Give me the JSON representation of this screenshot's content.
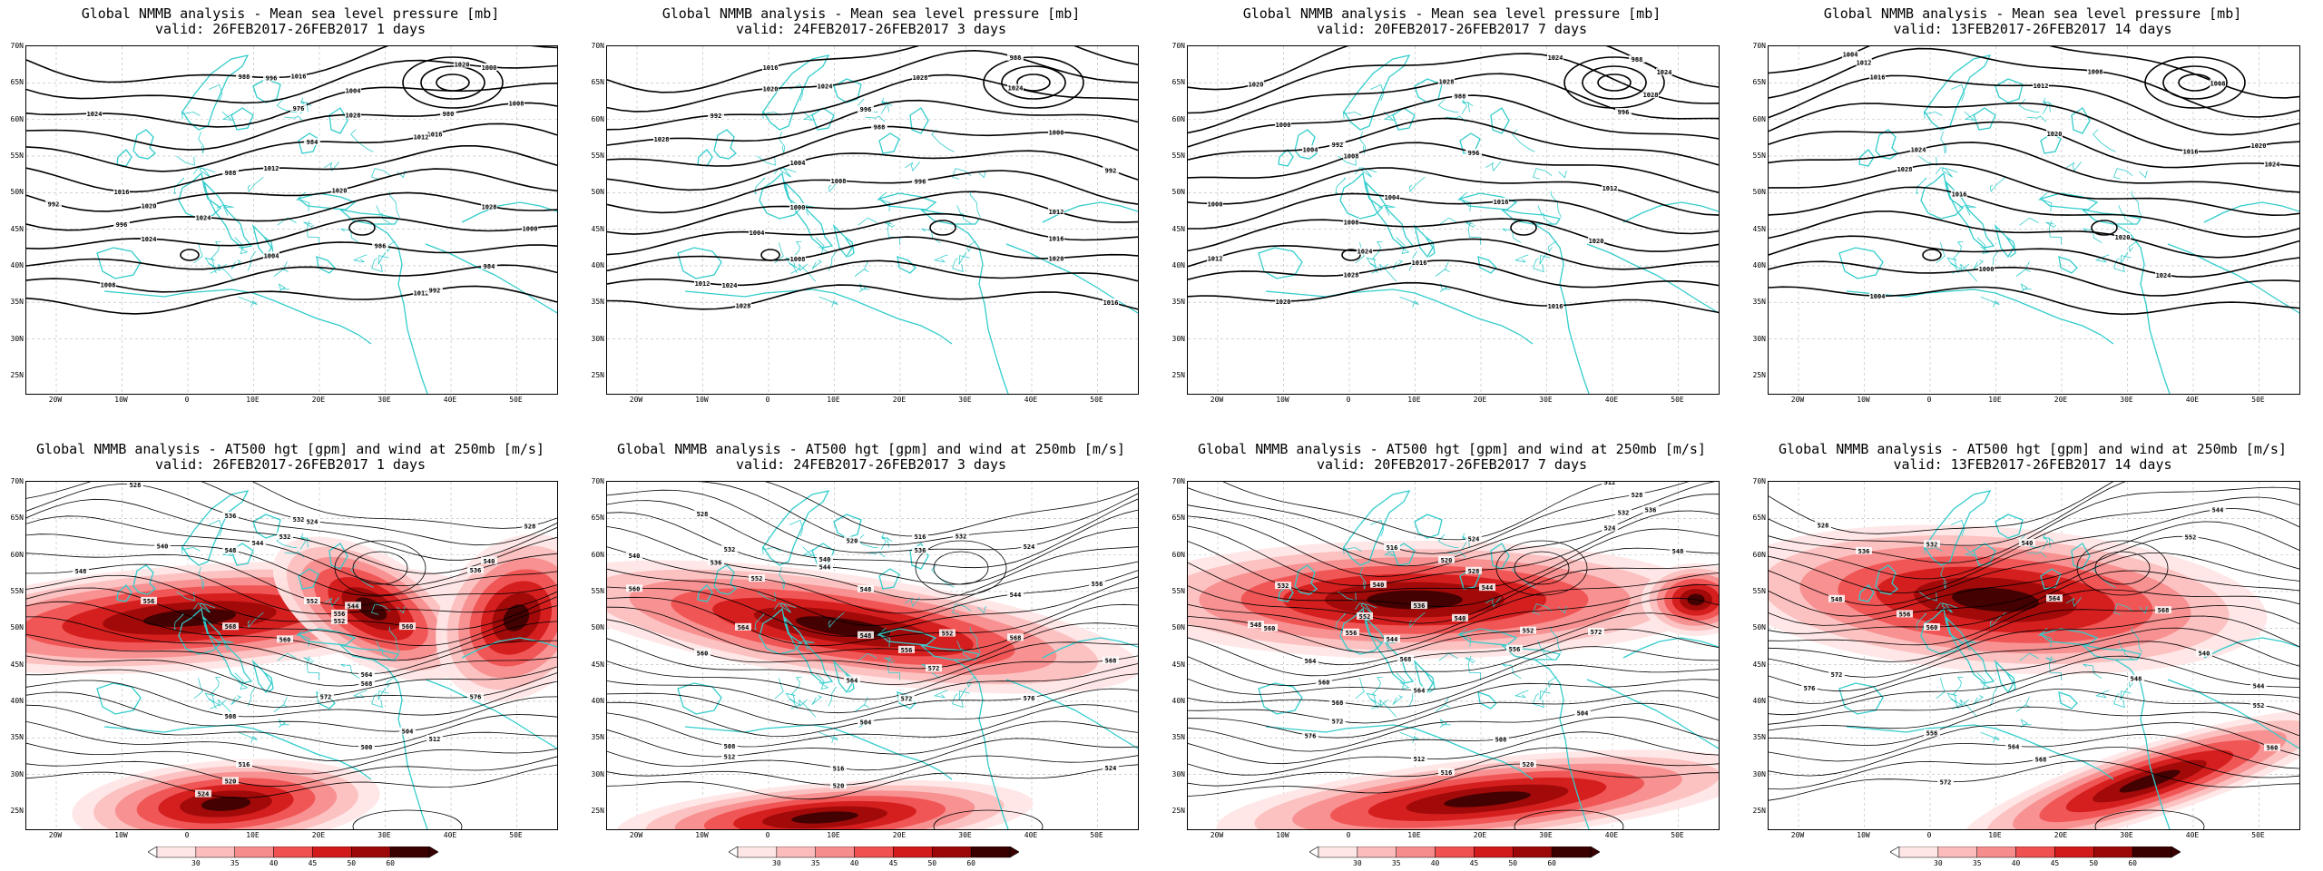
{
  "panels": [
    {
      "title_line1": "Global NMMB analysis - Mean sea level pressure [mb]",
      "title_line2": "valid: 26FEB2017-26FEB2017  1 days",
      "kind": "mslp",
      "contour_labels": [
        "988",
        "972",
        "976",
        "980",
        "984",
        "988",
        "992",
        "996",
        "1000",
        "1004",
        "1008",
        "1012",
        "1016",
        "1020",
        "1024",
        "1028",
        "1016",
        "1012",
        "1020",
        "1024",
        "1024",
        "986",
        "984",
        "992",
        "996",
        "1000",
        "1004",
        "1008",
        "1012",
        "1016",
        "1020",
        "1028"
      ]
    },
    {
      "title_line1": "Global NMMB analysis - Mean sea level pressure [mb]",
      "title_line2": "valid: 24FEB2017-26FEB2017  3 days",
      "kind": "mslp",
      "contour_labels": [
        "980",
        "988",
        "992",
        "996",
        "1000",
        "1004",
        "1008",
        "1012",
        "1016",
        "1020",
        "1024",
        "1028",
        "1016",
        "1020",
        "1024",
        "1028",
        "988",
        "992",
        "996",
        "1000",
        "1004",
        "1008",
        "1012",
        "1016",
        "1020",
        "1024",
        "1028"
      ]
    },
    {
      "title_line1": "Global NMMB analysis - Mean sea level pressure [mb]",
      "title_line2": "valid: 20FEB2017-26FEB2017  7 days",
      "kind": "mslp",
      "contour_labels": [
        "988",
        "992",
        "996",
        "1000",
        "1004",
        "1008",
        "1012",
        "1016",
        "1020",
        "1024",
        "1028",
        "1016",
        "1020",
        "1024",
        "1028",
        "988",
        "992",
        "996",
        "1000",
        "1004",
        "1008",
        "1012",
        "1016",
        "1020",
        "1024",
        "1028"
      ]
    },
    {
      "title_line1": "Global NMMB analysis - Mean sea level pressure [mb]",
      "title_line2": "valid: 13FEB2017-26FEB2017  14 days",
      "kind": "mslp",
      "contour_labels": [
        "1004",
        "1008",
        "1012",
        "1016",
        "1020",
        "1024",
        "1028",
        "1016",
        "1020",
        "1024",
        "1000",
        "1004",
        "1008",
        "1012",
        "1016",
        "1020",
        "1024"
      ]
    },
    {
      "title_line1": "Global NMMB analysis - AT500 hgt [gpm] and wind at 250mb [m/s]",
      "title_line2": "valid: 26FEB2017-26FEB2017  1 days",
      "kind": "z500",
      "contour_labels": [
        "520",
        "524",
        "528",
        "532",
        "536",
        "540",
        "544",
        "548",
        "552",
        "556",
        "560",
        "564",
        "568",
        "572",
        "576",
        "508",
        "504",
        "500",
        "512",
        "516",
        "520",
        "524",
        "528",
        "532",
        "536",
        "540",
        "544",
        "548",
        "552",
        "556",
        "560",
        "568"
      ]
    },
    {
      "title_line1": "Global NMMB analysis - AT500 hgt [gpm] and wind at 250mb [m/s]",
      "title_line2": "valid: 24FEB2017-26FEB2017  3 days",
      "kind": "z500",
      "contour_labels": [
        "516",
        "520",
        "524",
        "528",
        "532",
        "536",
        "540",
        "544",
        "548",
        "552",
        "556",
        "560",
        "564",
        "568",
        "572",
        "576",
        "504",
        "508",
        "512",
        "516",
        "520",
        "524",
        "528",
        "532",
        "536",
        "540",
        "544",
        "548",
        "552",
        "556",
        "560",
        "564",
        "568",
        "572"
      ]
    },
    {
      "title_line1": "Global NMMB analysis - AT500 hgt [gpm] and wind at 250mb [m/s]",
      "title_line2": "valid: 20FEB2017-26FEB2017  7 days",
      "kind": "z500",
      "contour_labels": [
        "512",
        "516",
        "520",
        "524",
        "528",
        "532",
        "536",
        "540",
        "544",
        "548",
        "552",
        "556",
        "560",
        "564",
        "568",
        "572",
        "576",
        "504",
        "508",
        "512",
        "516",
        "520",
        "524",
        "528",
        "532",
        "536",
        "540",
        "544",
        "548",
        "552",
        "556",
        "560",
        "564",
        "568",
        "572"
      ]
    },
    {
      "title_line1": "Global NMMB analysis - AT500 hgt [gpm] and wind at 250mb [m/s]",
      "title_line2": "valid: 13FEB2017-26FEB2017  14 days",
      "kind": "z500",
      "contour_labels": [
        "528",
        "532",
        "536",
        "540",
        "544",
        "548",
        "552",
        "556",
        "560",
        "564",
        "568",
        "572",
        "576",
        "540",
        "544",
        "548",
        "552",
        "556",
        "560",
        "564",
        "568",
        "572"
      ]
    }
  ],
  "axis": {
    "lat_labels": [
      "70N",
      "65N",
      "60N",
      "55N",
      "50N",
      "45N",
      "40N",
      "35N",
      "30N",
      "25N"
    ],
    "lon_labels": [
      "20W",
      "10W",
      "0",
      "10E",
      "20E",
      "30E",
      "40E",
      "50E"
    ]
  },
  "colorbar": {
    "labels": [
      "30",
      "35",
      "40",
      "45",
      "50",
      "60"
    ],
    "colors": [
      "#ffe6e6",
      "#fcbcbc",
      "#f78c8c",
      "#f05050",
      "#d21a1a",
      "#9c0808",
      "#3a0000"
    ]
  },
  "colors": {
    "coast": "#33cccc",
    "contour": "#000000",
    "grid": "#b8b8b8"
  }
}
